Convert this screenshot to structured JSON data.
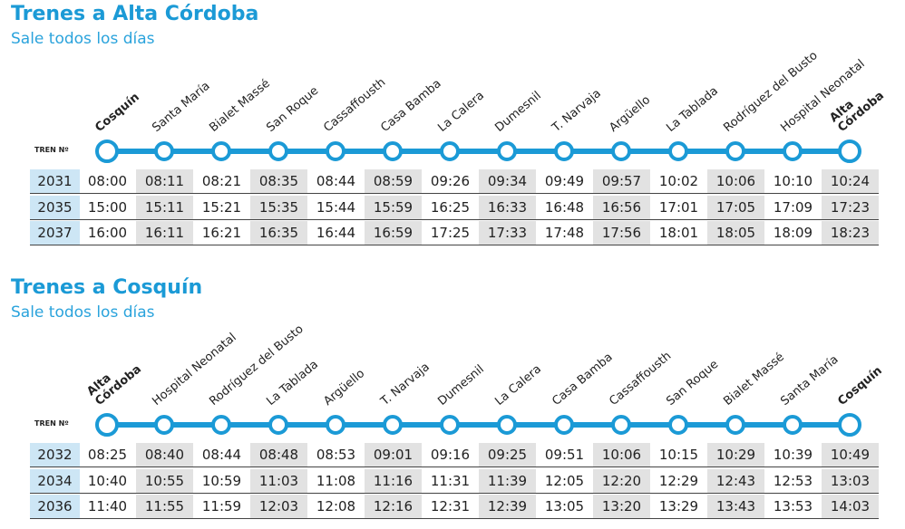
{
  "sections": [
    {
      "title": "Trenes a Alta Córdoba",
      "subtitle": "Sale todos los días",
      "train_label": "TREN Nº",
      "stations": [
        "Cosquín",
        "Santa María",
        "Bialet Massé",
        "San Roque",
        "Cassaffousth",
        "Casa Bamba",
        "La Calera",
        "Dumesnil",
        "T. Narvaja",
        "Argüello",
        "La Tablada",
        "Rodríguez del Busto",
        "Hospital Neonatal",
        "Alta Córdoba"
      ],
      "trains": [
        {
          "number": "2031",
          "times": [
            "08:00",
            "08:11",
            "08:21",
            "08:35",
            "08:44",
            "08:59",
            "09:26",
            "09:34",
            "09:49",
            "09:57",
            "10:02",
            "10:06",
            "10:10",
            "10:24"
          ]
        },
        {
          "number": "2035",
          "times": [
            "15:00",
            "15:11",
            "15:21",
            "15:35",
            "15:44",
            "15:59",
            "16:25",
            "16:33",
            "16:48",
            "16:56",
            "17:01",
            "17:05",
            "17:09",
            "17:23"
          ]
        },
        {
          "number": "2037",
          "times": [
            "16:00",
            "16:11",
            "16:21",
            "16:35",
            "16:44",
            "16:59",
            "17:25",
            "17:33",
            "17:48",
            "17:56",
            "18:01",
            "18:05",
            "18:09",
            "18:23"
          ]
        }
      ]
    },
    {
      "title": "Trenes a Cosquín",
      "subtitle": "Sale todos los días",
      "train_label": "TREN Nº",
      "stations": [
        "Alta Córdoba",
        "Hospital Neonatal",
        "Rodríguez del Busto",
        "La Tablada",
        "Argüello",
        "T. Narvaja",
        "Dumesnil",
        "La Calera",
        "Casa Bamba",
        "Cassaffousth",
        "San Roque",
        "Bialet Massé",
        "Santa María",
        "Cosquín"
      ],
      "trains": [
        {
          "number": "2032",
          "times": [
            "08:25",
            "08:40",
            "08:44",
            "08:48",
            "08:53",
            "09:01",
            "09:16",
            "09:25",
            "09:51",
            "10:06",
            "10:15",
            "10:29",
            "10:39",
            "10:49"
          ]
        },
        {
          "number": "2034",
          "times": [
            "10:40",
            "10:55",
            "10:59",
            "11:03",
            "11:08",
            "11:16",
            "11:31",
            "11:39",
            "12:05",
            "12:20",
            "12:29",
            "12:43",
            "12:53",
            "13:03"
          ]
        },
        {
          "number": "2036",
          "times": [
            "11:40",
            "11:55",
            "11:59",
            "12:03",
            "12:08",
            "12:16",
            "12:31",
            "12:39",
            "13:05",
            "13:20",
            "13:29",
            "13:43",
            "13:53",
            "14:03"
          ]
        }
      ]
    }
  ]
}
